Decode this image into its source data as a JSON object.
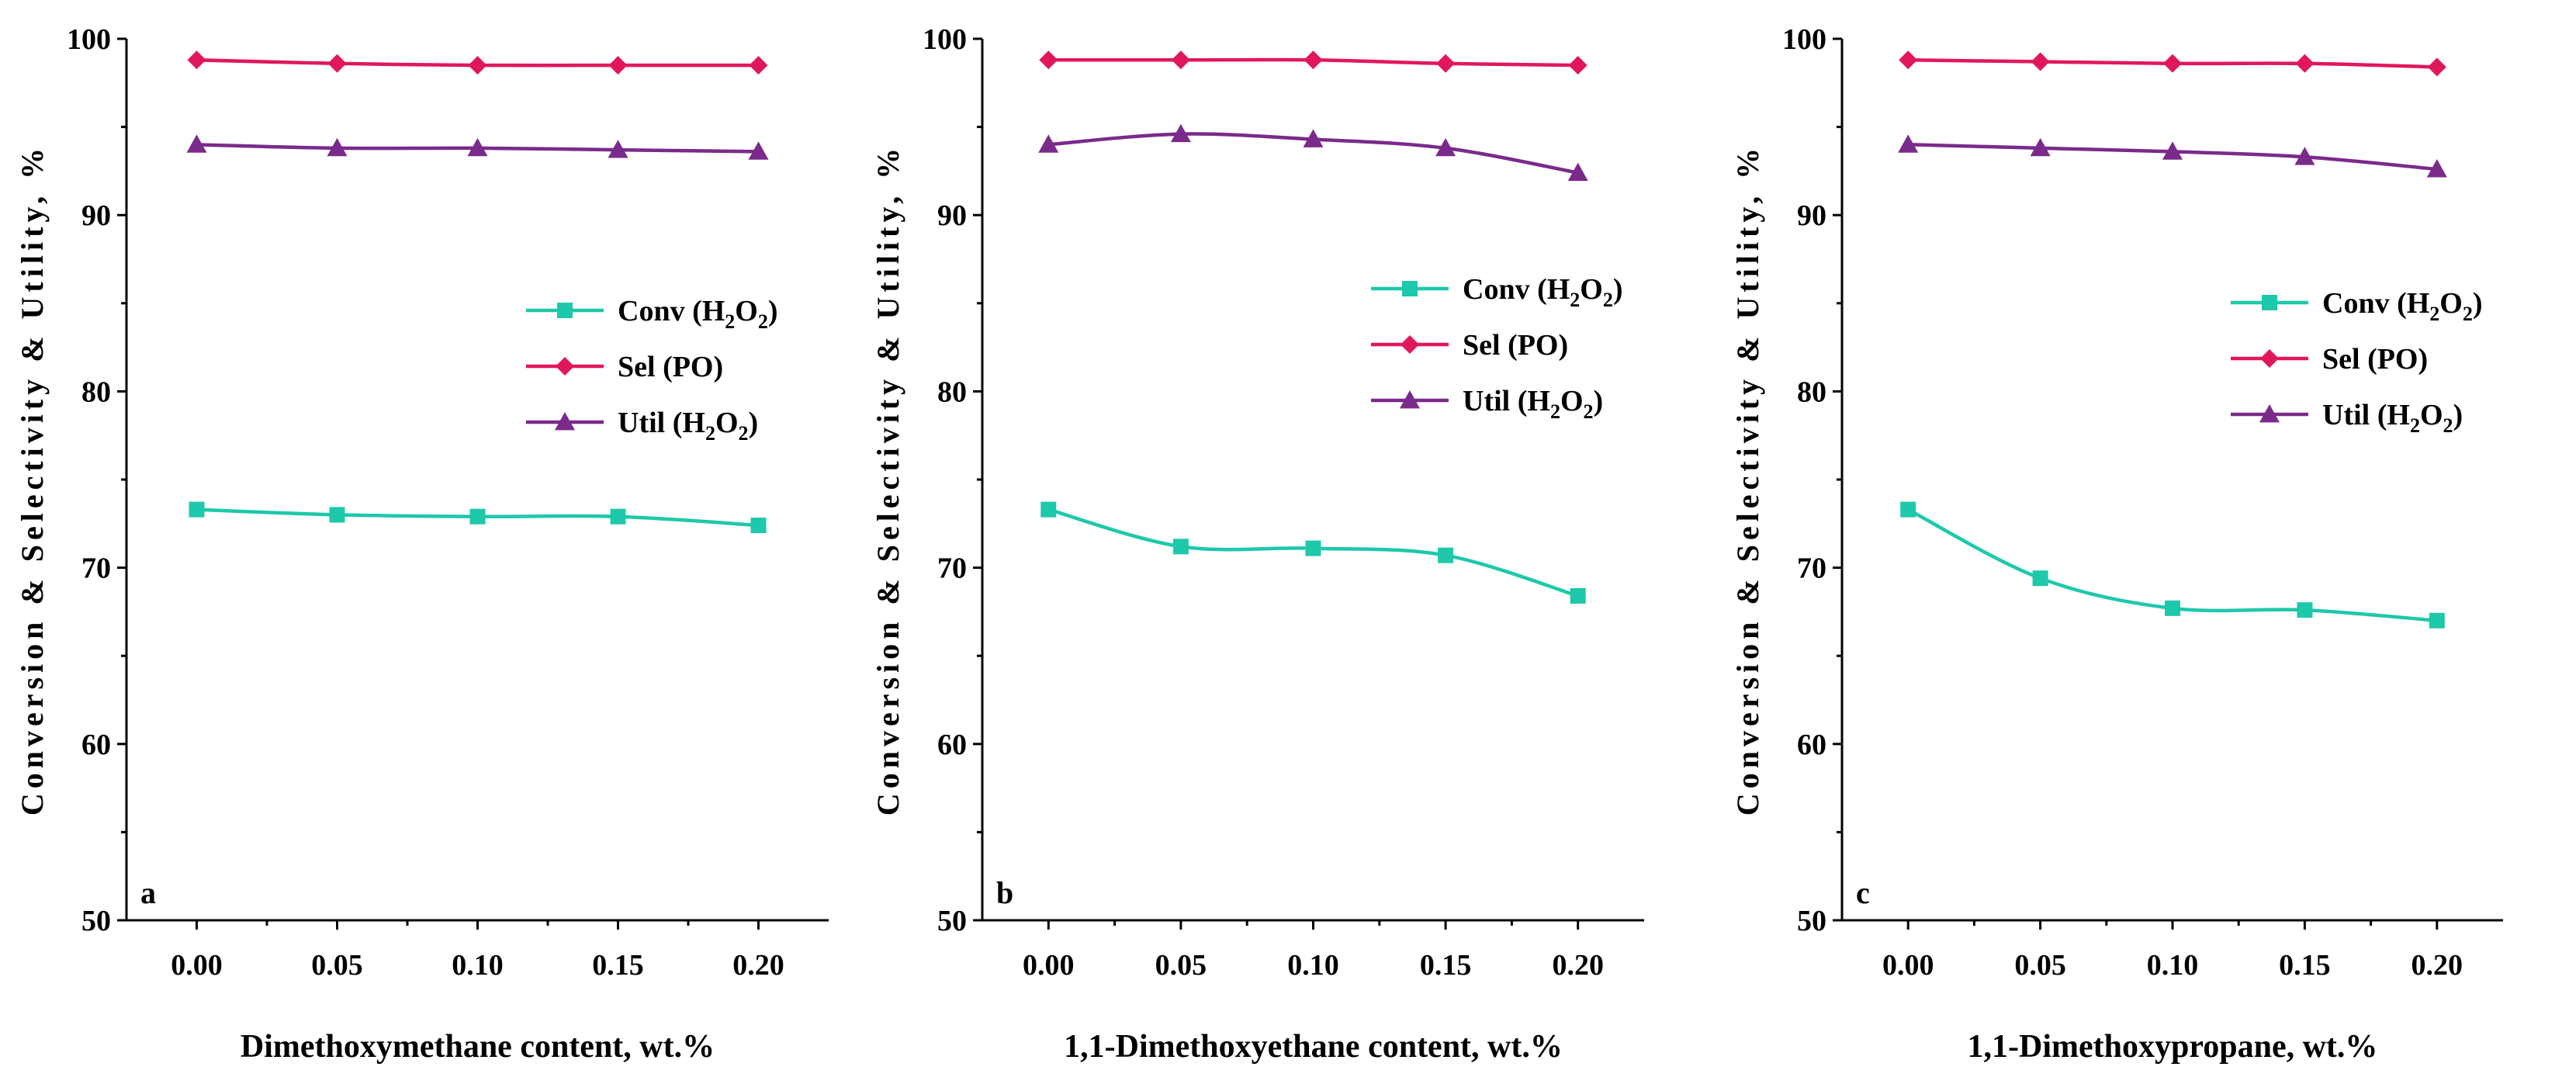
{
  "colors": {
    "conv": "#1ec8aa",
    "sel": "#e0185a",
    "util": "#7a2a8a",
    "axis": "#000000"
  },
  "chart_data": [
    {
      "type": "line",
      "panel_label": "a",
      "xlabel": "Dimethoxymethane content, wt.%",
      "ylabel": "Conversion & Selectivity & Utility, %",
      "xlim": [
        -0.025,
        0.225
      ],
      "ylim": [
        50,
        100
      ],
      "x": [
        0.0,
        0.05,
        0.1,
        0.15,
        0.2
      ],
      "x_tick_labels": [
        "0.00",
        "0.05",
        "0.10",
        "0.15",
        "0.20"
      ],
      "y_ticks": [
        50,
        60,
        70,
        80,
        90,
        100
      ],
      "legend_position": "right-middle",
      "series": [
        {
          "key": "conv",
          "name": "Conv",
          "paren": "(H2O2)",
          "marker": "square",
          "values": [
            73.3,
            73.0,
            72.9,
            72.9,
            72.4
          ]
        },
        {
          "key": "sel",
          "name": "Sel",
          "paren": "(PO)",
          "marker": "diamond",
          "values": [
            98.8,
            98.6,
            98.5,
            98.5,
            98.5
          ]
        },
        {
          "key": "util",
          "name": "Util",
          "paren": "(H2O2)",
          "marker": "triangle",
          "values": [
            94.0,
            93.8,
            93.8,
            93.7,
            93.6
          ]
        }
      ]
    },
    {
      "type": "line",
      "panel_label": "b",
      "xlabel": "1,1-Dimethoxyethane content, wt.%",
      "ylabel": "Conversion & Selectivity & Utility, %",
      "xlim": [
        -0.025,
        0.225
      ],
      "ylim": [
        50,
        100
      ],
      "x": [
        0.0,
        0.05,
        0.1,
        0.15,
        0.2
      ],
      "x_tick_labels": [
        "0.00",
        "0.05",
        "0.10",
        "0.15",
        "0.20"
      ],
      "y_ticks": [
        50,
        60,
        70,
        80,
        90,
        100
      ],
      "legend_position": "right-middle",
      "series": [
        {
          "key": "conv",
          "name": "Conv",
          "paren": "(H2O2)",
          "marker": "square",
          "values": [
            73.3,
            71.2,
            71.1,
            70.7,
            68.4
          ]
        },
        {
          "key": "sel",
          "name": "Sel",
          "paren": "(PO)",
          "marker": "diamond",
          "values": [
            98.8,
            98.8,
            98.8,
            98.6,
            98.5
          ]
        },
        {
          "key": "util",
          "name": "Util",
          "paren": "(H2O2)",
          "marker": "triangle",
          "values": [
            94.0,
            94.6,
            94.3,
            93.8,
            92.4
          ]
        }
      ]
    },
    {
      "type": "line",
      "panel_label": "c",
      "xlabel": "1,1-Dimethoxypropane, wt.%",
      "ylabel": "Conversion & Selectivity & Utility, %",
      "xlim": [
        -0.025,
        0.225
      ],
      "ylim": [
        50,
        100
      ],
      "x": [
        0.0,
        0.05,
        0.1,
        0.15,
        0.2
      ],
      "x_tick_labels": [
        "0.00",
        "0.05",
        "0.10",
        "0.15",
        "0.20"
      ],
      "y_ticks": [
        50,
        60,
        70,
        80,
        90,
        100
      ],
      "legend_position": "right-middle",
      "series": [
        {
          "key": "conv",
          "name": "Conv",
          "paren": "(H2O2)",
          "marker": "square",
          "values": [
            73.3,
            69.4,
            67.7,
            67.6,
            67.0
          ]
        },
        {
          "key": "sel",
          "name": "Sel",
          "paren": "(PO)",
          "marker": "diamond",
          "values": [
            98.8,
            98.7,
            98.6,
            98.6,
            98.4
          ]
        },
        {
          "key": "util",
          "name": "Util",
          "paren": "(H2O2)",
          "marker": "triangle",
          "values": [
            94.0,
            93.8,
            93.6,
            93.3,
            92.6
          ]
        }
      ]
    }
  ]
}
